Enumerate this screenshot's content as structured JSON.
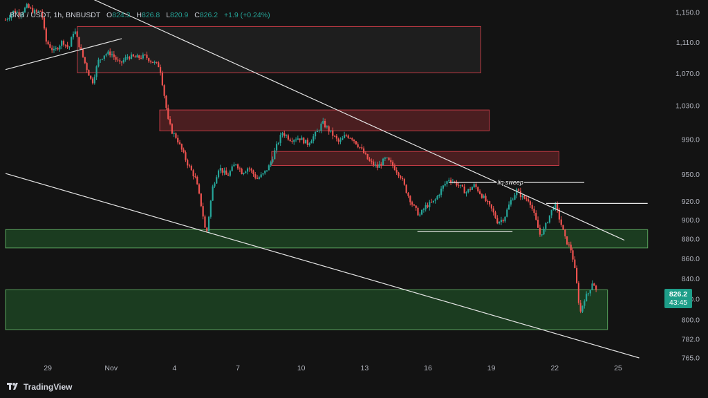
{
  "legend": {
    "symbol": "BNB / USDT, 1h, BNBUSDT",
    "o_label": "O",
    "o": "824.3",
    "h_label": "H",
    "h": "826.8",
    "l_label": "L",
    "l": "820.9",
    "c_label": "C",
    "c": "826.2",
    "change": "+1.9 (+0.24%)"
  },
  "brand": {
    "name": "TradingView",
    "logo_icon": "tradingview-logo-icon"
  },
  "last_price": {
    "price": "826.2",
    "countdown": "43:45",
    "color": "#1e9e89"
  },
  "colors": {
    "up": "#26a69a",
    "down": "#ef5350",
    "background": "#131313"
  },
  "chart_data": {
    "type": "candlestick",
    "symbol": "BNBUSDT",
    "interval": "1h",
    "y_axis": {
      "scale": "log",
      "ticks": [
        1150.0,
        1110.0,
        1070.0,
        1030.0,
        990.0,
        950.0,
        920.0,
        900.0,
        880.0,
        860.0,
        840.0,
        820.0,
        800.0,
        782.0,
        765.0
      ],
      "tick_labels": [
        "1,150.0",
        "1,110.0",
        "1,070.0",
        "1,030.0",
        "990.0",
        "950.0",
        "920.0",
        "900.0",
        "880.0",
        "860.0",
        "840.0",
        "820.0",
        "800.0",
        "782.0",
        "765.0"
      ]
    },
    "x_axis": {
      "tick_labels": [
        "29",
        "Nov",
        "4",
        "7",
        "10",
        "13",
        "16",
        "19",
        "22",
        "25"
      ],
      "tick_days": [
        -3,
        0,
        3,
        6,
        9,
        12,
        15,
        18,
        21,
        24
      ],
      "range_days": [
        -5,
        25.4
      ]
    },
    "price_path": [
      [
        -5.0,
        1140
      ],
      [
        -4.6,
        1152
      ],
      [
        -4.3,
        1148
      ],
      [
        -4.0,
        1158
      ],
      [
        -3.6,
        1150
      ],
      [
        -3.3,
        1152
      ],
      [
        -3.1,
        1112
      ],
      [
        -2.7,
        1098
      ],
      [
        -2.3,
        1112
      ],
      [
        -2.0,
        1102
      ],
      [
        -1.75,
        1128
      ],
      [
        -1.5,
        1105
      ],
      [
        -1.2,
        1080
      ],
      [
        -0.9,
        1058
      ],
      [
        -0.6,
        1086
      ],
      [
        -0.3,
        1095
      ],
      [
        0.0,
        1096
      ],
      [
        0.4,
        1082
      ],
      [
        0.8,
        1092
      ],
      [
        1.2,
        1090
      ],
      [
        1.6,
        1092
      ],
      [
        2.0,
        1084
      ],
      [
        2.3,
        1079
      ],
      [
        2.5,
        1046
      ],
      [
        2.7,
        1012
      ],
      [
        2.9,
        998
      ],
      [
        3.1,
        992
      ],
      [
        3.3,
        980
      ],
      [
        3.6,
        963
      ],
      [
        4.0,
        945
      ],
      [
        4.3,
        912
      ],
      [
        4.5,
        883
      ],
      [
        4.8,
        935
      ],
      [
        5.1,
        958
      ],
      [
        5.5,
        948
      ],
      [
        5.9,
        963
      ],
      [
        6.2,
        952
      ],
      [
        6.5,
        958
      ],
      [
        6.9,
        945
      ],
      [
        7.2,
        950
      ],
      [
        7.5,
        960
      ],
      [
        7.8,
        980
      ],
      [
        8.1,
        998
      ],
      [
        8.5,
        990
      ],
      [
        8.9,
        992
      ],
      [
        9.3,
        985
      ],
      [
        9.8,
        1000
      ],
      [
        10.0,
        1010
      ],
      [
        10.4,
        998
      ],
      [
        10.8,
        986
      ],
      [
        11.1,
        995
      ],
      [
        11.4,
        992
      ],
      [
        11.8,
        980
      ],
      [
        12.2,
        965
      ],
      [
        12.6,
        958
      ],
      [
        13.0,
        968
      ],
      [
        13.4,
        958
      ],
      [
        13.7,
        948
      ],
      [
        14.0,
        930
      ],
      [
        14.3,
        915
      ],
      [
        14.6,
        905
      ],
      [
        14.9,
        915
      ],
      [
        15.3,
        920
      ],
      [
        15.7,
        936
      ],
      [
        16.0,
        945
      ],
      [
        16.4,
        939
      ],
      [
        16.8,
        930
      ],
      [
        17.2,
        938
      ],
      [
        17.6,
        925
      ],
      [
        18.0,
        912
      ],
      [
        18.3,
        898
      ],
      [
        18.6,
        902
      ],
      [
        18.9,
        920
      ],
      [
        19.2,
        932
      ],
      [
        19.5,
        924
      ],
      [
        19.8,
        922
      ],
      [
        20.1,
        900
      ],
      [
        20.3,
        885
      ],
      [
        20.5,
        890
      ],
      [
        20.7,
        902
      ],
      [
        21.0,
        918
      ],
      [
        21.3,
        896
      ],
      [
        21.5,
        880
      ],
      [
        21.8,
        868
      ],
      [
        22.0,
        842
      ],
      [
        22.2,
        806
      ],
      [
        22.4,
        820
      ],
      [
        22.6,
        826
      ],
      [
        22.8,
        838
      ],
      [
        23.0,
        826
      ]
    ],
    "zones": [
      {
        "kind": "supply",
        "from_day": -1.6,
        "to_day": 17.5,
        "high": 1131,
        "low": 1071
      },
      {
        "kind": "supply",
        "from_day": 2.3,
        "to_day": 17.9,
        "high": 1025,
        "low": 1000
      },
      {
        "kind": "supply",
        "from_day": 7.6,
        "to_day": 21.2,
        "high": 976,
        "low": 960
      },
      {
        "kind": "demand",
        "from_day": -5,
        "to_day": 25.4,
        "high": 890,
        "low": 871
      },
      {
        "kind": "demand",
        "from_day": -5,
        "to_day": 23.5,
        "high": 829,
        "low": 791
      }
    ],
    "trendlines": [
      {
        "from": [
          -5,
          1075
        ],
        "to": [
          0.5,
          1115
        ]
      },
      {
        "from": [
          -2.5,
          1190
        ],
        "to": [
          24.3,
          879
        ]
      },
      {
        "from": [
          -5,
          951
        ],
        "to": [
          25,
          765
        ]
      }
    ],
    "levels": [
      {
        "from_day": 14.5,
        "to_day": 19.0,
        "price": 888
      },
      {
        "from_day": 16.0,
        "to_day": 22.4,
        "price": 941
      },
      {
        "from_day": 20.6,
        "to_day": 25.4,
        "price": 918
      }
    ],
    "annotations": [
      {
        "text": "liq sweep",
        "day": 18.9,
        "price": 941
      }
    ]
  }
}
